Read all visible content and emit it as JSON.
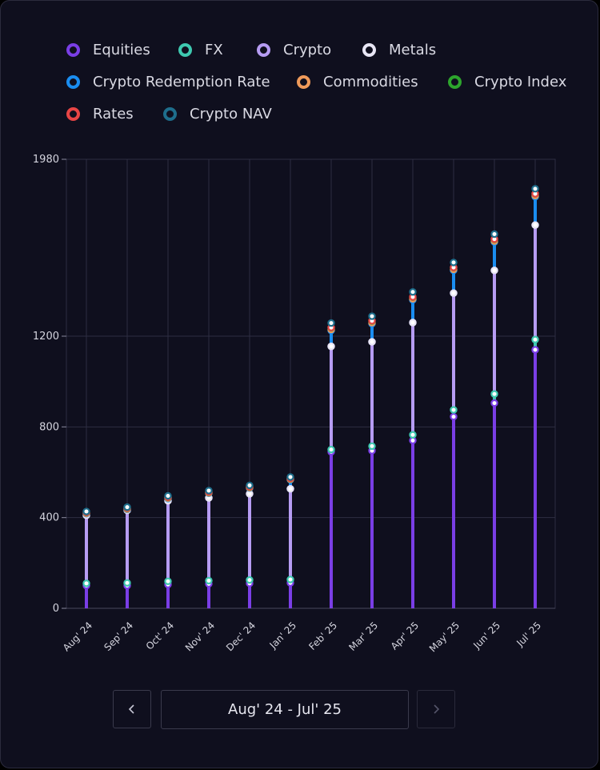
{
  "legend": [
    {
      "name": "Equities",
      "color": "#7a3ee6"
    },
    {
      "name": "FX",
      "color": "#3ec9b0"
    },
    {
      "name": "Crypto",
      "color": "#b69cf3"
    },
    {
      "name": "Metals",
      "color": "#e8e6f5"
    },
    {
      "name": "Crypto Redemption Rate",
      "color": "#1a8df0"
    },
    {
      "name": "Commodities",
      "color": "#ef9a5a"
    },
    {
      "name": "Crypto Index",
      "color": "#2da52d"
    },
    {
      "name": "Rates",
      "color": "#e84545"
    },
    {
      "name": "Crypto NAV",
      "color": "#1e6e8c"
    }
  ],
  "chart_data": {
    "type": "line",
    "stacked": true,
    "categories": [
      "Aug' 24",
      "Sep' 24",
      "Oct' 24",
      "Nov' 24",
      "Dec' 24",
      "Jan' 25",
      "Feb' 25",
      "Mar' 25",
      "Apr' 25",
      "May' 25",
      "Jun' 25",
      "Jul' 25"
    ],
    "y_ticks": [
      0,
      400,
      800,
      1200,
      1980
    ],
    "ylim": [
      0,
      1980
    ],
    "grid": true,
    "legend_position": "top",
    "series": [
      {
        "name": "Equities",
        "color": "#7a3ee6",
        "values": [
          100,
          100,
          105,
          108,
          110,
          112,
          690,
          695,
          740,
          845,
          905,
          1140
        ]
      },
      {
        "name": "FX",
        "color": "#3ec9b0",
        "values": [
          10,
          12,
          14,
          14,
          15,
          15,
          10,
          20,
          25,
          30,
          40,
          45
        ]
      },
      {
        "name": "Crypto",
        "color": "#b69cf3",
        "values": [
          300,
          320,
          355,
          365,
          380,
          400,
          455,
          460,
          495,
          515,
          545,
          505
        ]
      },
      {
        "name": "Metals",
        "color": "#e8e6f5",
        "values": [
          0,
          0,
          0,
          0,
          0,
          0,
          0,
          0,
          0,
          0,
          0,
          0
        ]
      },
      {
        "name": "Crypto Redemption Rate",
        "color": "#1a8df0",
        "values": [
          7,
          4,
          10,
          20,
          25,
          40,
          70,
          80,
          100,
          100,
          125,
          125
        ]
      },
      {
        "name": "Commodities",
        "color": "#ef9a5a",
        "values": [
          2,
          2,
          2,
          2,
          2,
          2,
          5,
          5,
          5,
          5,
          5,
          5
        ]
      },
      {
        "name": "Crypto Index",
        "color": "#2da52d",
        "values": [
          3,
          3,
          3,
          3,
          3,
          3,
          7,
          7,
          7,
          7,
          7,
          7
        ]
      },
      {
        "name": "Rates",
        "color": "#e84545",
        "values": [
          1,
          1,
          1,
          1,
          1,
          1,
          1,
          1,
          1,
          1,
          1,
          1
        ]
      },
      {
        "name": "Crypto NAV",
        "color": "#1e6e8c",
        "values": [
          4,
          4,
          6,
          6,
          6,
          6,
          20,
          20,
          22,
          22,
          22,
          22
        ]
      }
    ]
  },
  "pager": {
    "range_label": "Aug' 24 - Jul' 25",
    "prev_icon": "chevron-left-icon",
    "next_icon": "chevron-right-icon"
  }
}
